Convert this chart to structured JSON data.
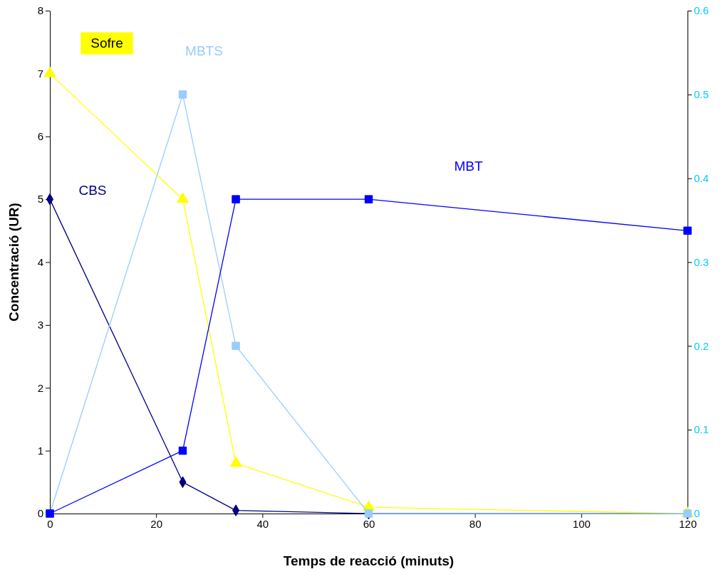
{
  "chart_data": {
    "type": "line",
    "xlabel": "Temps de reacció (minuts)",
    "ylabel": "Concentració (UR)",
    "x": [
      0,
      25,
      35,
      60,
      120
    ],
    "xlim": [
      0,
      120
    ],
    "xticks": [
      0,
      20,
      40,
      60,
      80,
      100,
      120
    ],
    "ylim": [
      0,
      8
    ],
    "yticks": [
      0,
      1,
      2,
      3,
      4,
      5,
      6,
      7,
      8
    ],
    "y2lim": [
      0,
      0.6
    ],
    "y2ticks": [
      0,
      0.1,
      0.2,
      0.3,
      0.4,
      0.5,
      0.6
    ],
    "grid": false,
    "series": [
      {
        "name": "CBS",
        "color": "#000080",
        "marker": "diamond",
        "values": [
          5,
          0.5,
          0.05,
          0,
          0
        ]
      },
      {
        "name": "Sofre",
        "color": "#ffff00",
        "marker": "triangle",
        "values": [
          7,
          5,
          0.8,
          0.1,
          0
        ]
      },
      {
        "name": "MBTS",
        "color": "#99ccff",
        "marker": "square",
        "axis": "y2",
        "values": [
          0,
          0.5,
          0.2,
          0,
          0
        ]
      },
      {
        "name": "MBT",
        "color": "#0000ff",
        "marker": "square",
        "values": [
          0,
          1,
          5,
          5,
          4.5
        ]
      }
    ]
  }
}
